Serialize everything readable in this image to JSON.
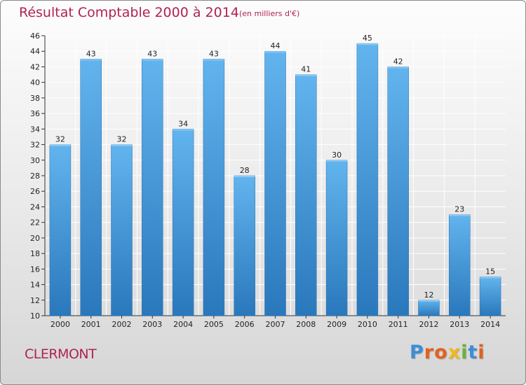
{
  "header": {
    "title": "Résultat Comptable 2000 à 2014",
    "subtitle": "(en milliers d'€)"
  },
  "footer": {
    "commune": "CLERMONT",
    "logo_text": "Proxiti"
  },
  "colors": {
    "title": "#b0234f",
    "bar_light": "#5fb1ec",
    "bar_dark": "#2c7cc0",
    "logo": [
      "#3b8ed6",
      "#e3611e",
      "#e3611e",
      "#f2b81b",
      "#6bb33a",
      "#3b8ed6",
      "#e3611e"
    ]
  },
  "chart_data": {
    "type": "bar",
    "title": "Résultat Comptable 2000 à 2014",
    "subtitle": "(en milliers d'€)",
    "xlabel": "",
    "ylabel": "",
    "ylim": [
      10,
      46
    ],
    "yticks": [
      10,
      12,
      14,
      16,
      18,
      20,
      22,
      24,
      26,
      28,
      30,
      32,
      34,
      36,
      38,
      40,
      42,
      44,
      46
    ],
    "grid": true,
    "categories": [
      "2000",
      "2001",
      "2002",
      "2003",
      "2004",
      "2005",
      "2006",
      "2007",
      "2008",
      "2009",
      "2010",
      "2011",
      "2012",
      "2013",
      "2014"
    ],
    "values": [
      32,
      43,
      32,
      43,
      34,
      43,
      28,
      44,
      41,
      30,
      45,
      42,
      12,
      23,
      15
    ]
  }
}
